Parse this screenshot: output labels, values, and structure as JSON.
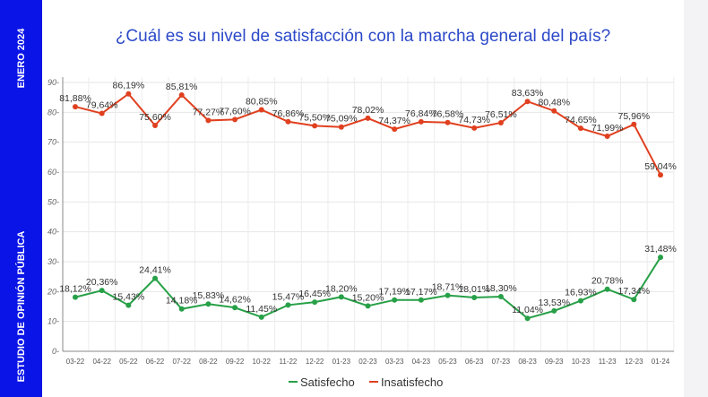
{
  "sidebar": {
    "top_text": "ENERO 2024",
    "bottom_text": "ESTUDIO DE OPINIÓN PÚBLICA"
  },
  "chart_data": {
    "type": "line",
    "title": "¿Cuál es su nivel de satisfacción con la marcha general del país?",
    "xlabel": "",
    "ylabel": "",
    "ylim": [
      0,
      90
    ],
    "yticks": [
      0,
      10,
      20,
      30,
      40,
      50,
      60,
      70,
      80,
      90
    ],
    "grid": true,
    "legend": "bottom",
    "categories": [
      "03-22",
      "04-22",
      "05-22",
      "06-22",
      "07-22",
      "08-22",
      "09-22",
      "10-22",
      "11-22",
      "12-22",
      "01-23",
      "02-23",
      "03-23",
      "04-23",
      "05-23",
      "06-23",
      "07-23",
      "08-23",
      "09-23",
      "10-23",
      "11-23",
      "12-23",
      "01-24"
    ],
    "series": [
      {
        "name": "Satisfecho",
        "color": "#27a047",
        "values": [
          18.12,
          20.36,
          15.43,
          24.41,
          14.18,
          15.83,
          14.62,
          11.45,
          15.47,
          16.45,
          18.2,
          15.2,
          17.19,
          17.17,
          18.71,
          18.01,
          18.3,
          11.04,
          13.53,
          16.93,
          20.78,
          17.34,
          31.48
        ],
        "labels": [
          "18,12%",
          "20,36%",
          "15,43%",
          "24,41%",
          "14,18%",
          "15,83%",
          "14,62%",
          "11,45%",
          "15,47%",
          "16,45%",
          "18,20%",
          "15,20%",
          "17,19%",
          "17,17%",
          "18,71%",
          "18,01%",
          "18,30%",
          "11,04%",
          "13,53%",
          "16,93%",
          "20,78%",
          "17,34%",
          "31,48%"
        ]
      },
      {
        "name": "Insatisfecho",
        "color": "#e0401f",
        "values": [
          81.88,
          79.64,
          86.19,
          75.6,
          85.81,
          77.27,
          77.6,
          80.85,
          76.86,
          75.5,
          75.09,
          78.02,
          74.37,
          76.84,
          76.58,
          74.73,
          76.51,
          83.63,
          80.48,
          74.65,
          71.99,
          75.96,
          59.04
        ],
        "labels": [
          "81,88%",
          "79,64%",
          "86,19%",
          "75,60%",
          "85,81%",
          "77,27%",
          "77,60%",
          "80,85%",
          "76,86%",
          "75,50%",
          "75,09%",
          "78,02%",
          "74,37%",
          "76,84%",
          "76,58%",
          "74,73%",
          "76,51%",
          "83,63%",
          "80,48%",
          "74,65%",
          "71,99%",
          "75,96%",
          "59,04%"
        ]
      }
    ]
  }
}
